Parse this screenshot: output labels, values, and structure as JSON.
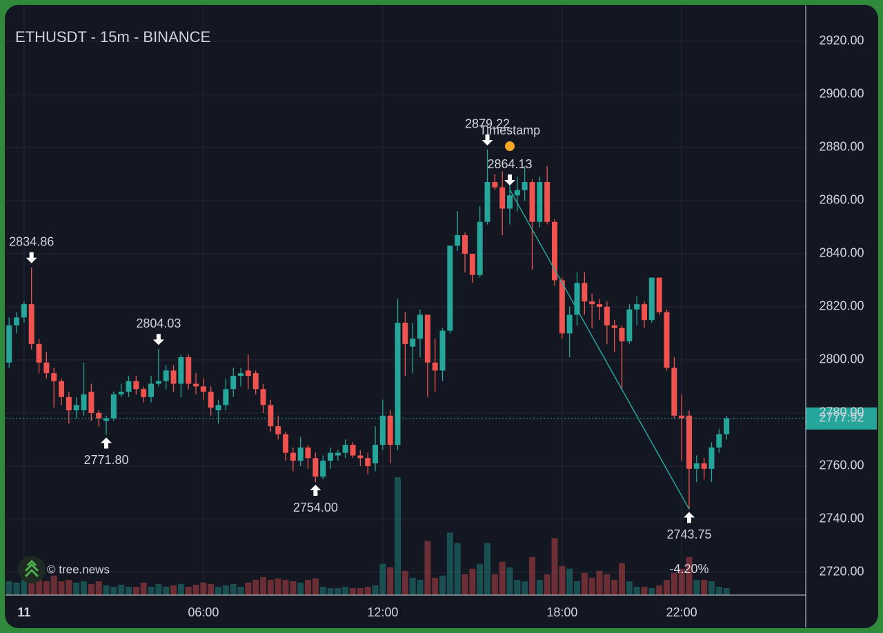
{
  "chart_data": {
    "type": "candlestick",
    "title": "ETHUSDT - 15m - BINANCE",
    "x": [
      -0.5,
      -0.25,
      0,
      0.25,
      0.5,
      0.75,
      1,
      1.25,
      1.5,
      1.75,
      2,
      2.25,
      2.5,
      2.75,
      3,
      3.25,
      3.5,
      3.75,
      4,
      4.25,
      4.5,
      4.75,
      5,
      5.25,
      5.5,
      5.75,
      6,
      6.25,
      6.5,
      6.75,
      7,
      7.25,
      7.5,
      7.75,
      8,
      8.25,
      8.5,
      8.75,
      9,
      9.25,
      9.5,
      9.75,
      10,
      10.25,
      10.5,
      10.75,
      11,
      11.25,
      11.5,
      11.75,
      12,
      12.25,
      12.5,
      12.75,
      13,
      13.25,
      13.5,
      13.75,
      14,
      14.25,
      14.5,
      14.75,
      15,
      15.25,
      15.5,
      15.75,
      16,
      16.25,
      16.5,
      16.75,
      17,
      17.25,
      17.5,
      17.75,
      18,
      18.25,
      18.5,
      18.75,
      19,
      19.25,
      19.5,
      19.75,
      20,
      20.25,
      20.5,
      20.75,
      21,
      21.25,
      21.5,
      21.75,
      22,
      22.25,
      22.5,
      22.75,
      23,
      23.25,
      23.5
    ],
    "open": [
      2799,
      2813,
      2816,
      2821,
      2806,
      2799,
      2795,
      2792,
      2786,
      2781,
      2781,
      2788,
      2780,
      2777,
      2778,
      2787,
      2788,
      2792,
      2789,
      2786,
      2791,
      2792,
      2796,
      2791,
      2801,
      2791,
      2790,
      2788,
      2781,
      2783,
      2789,
      2794,
      2796,
      2795,
      2789,
      2783,
      2775,
      2772,
      2765,
      2762,
      2767,
      2763,
      2756,
      2762,
      2764,
      2765,
      2768,
      2764,
      2763,
      2761,
      2768,
      2779,
      2768,
      2814,
      2805,
      2808,
      2817,
      2799,
      2796,
      2811,
      2843,
      2847,
      2840,
      2832,
      2852,
      2867,
      2865,
      2857,
      2862,
      2864,
      2867,
      2852,
      2867,
      2852,
      2830,
      2810,
      2817,
      2829,
      2822,
      2821,
      2820,
      2813,
      2812,
      2807,
      2819,
      2821,
      2815,
      2831,
      2818,
      2797,
      2779,
      2779,
      2759,
      2761,
      2759,
      2767,
      2772
    ],
    "high": [
      2816,
      2818,
      2822,
      2834.86,
      2808,
      2803,
      2797,
      2793,
      2788,
      2786,
      2799,
      2791,
      2781,
      2779,
      2788,
      2791,
      2794,
      2794,
      2790,
      2794,
      2804.03,
      2798,
      2798,
      2802,
      2802,
      2795,
      2793,
      2790,
      2785,
      2793,
      2797,
      2797,
      2802,
      2796,
      2791,
      2785,
      2779,
      2773,
      2767,
      2771,
      2768,
      2765,
      2764,
      2767,
      2766,
      2770,
      2769,
      2766,
      2765,
      2775,
      2785,
      2781,
      2823,
      2818,
      2814,
      2819,
      2817,
      2808,
      2812,
      2843,
      2856,
      2848,
      2840,
      2858,
      2879.22,
      2870,
      2871,
      2868,
      2869,
      2873,
      2868,
      2869,
      2873,
      2853,
      2831,
      2820,
      2833,
      2833,
      2825,
      2823,
      2822,
      2815,
      2813,
      2821,
      2824,
      2822,
      2831,
      2831,
      2819,
      2801,
      2787,
      2781,
      2764,
      2763,
      2769,
      2774,
      2779
    ],
    "low": [
      2797,
      2810,
      2814,
      2804,
      2795,
      2793,
      2782,
      2783,
      2776,
      2778,
      2779,
      2777,
      2775,
      2771.8,
      2777,
      2786,
      2786,
      2787,
      2784,
      2784,
      2790,
      2789,
      2788,
      2786,
      2789,
      2787,
      2785,
      2779,
      2776,
      2781,
      2786,
      2790,
      2789,
      2787,
      2780,
      2773,
      2770,
      2762,
      2758,
      2760,
      2759,
      2754,
      2755,
      2759,
      2762,
      2763,
      2763,
      2760,
      2757,
      2758,
      2766,
      2761,
      2766,
      2794,
      2795,
      2801,
      2786,
      2788,
      2792,
      2810,
      2841,
      2833,
      2829,
      2831,
      2851,
      2864,
      2847,
      2851,
      2856,
      2860,
      2834,
      2850,
      2851,
      2828,
      2808,
      2801,
      2813,
      2817,
      2812,
      2815,
      2806,
      2803,
      2789,
      2806,
      2813,
      2812,
      2814,
      2817,
      2796,
      2778,
      2762,
      2743.75,
      2754,
      2755,
      2754,
      2765,
      2770
    ],
    "close": [
      2813,
      2816,
      2821,
      2806,
      2799,
      2795,
      2792,
      2786,
      2781,
      2783,
      2787,
      2780,
      2778,
      2778,
      2787,
      2788,
      2792,
      2789,
      2786,
      2791,
      2792,
      2796,
      2791,
      2801,
      2791,
      2790,
      2788,
      2782,
      2783,
      2789,
      2794,
      2795,
      2794,
      2789,
      2783,
      2775,
      2772,
      2765,
      2762,
      2767,
      2763,
      2756,
      2762,
      2765,
      2765,
      2768,
      2764,
      2763,
      2760,
      2768,
      2779,
      2768,
      2814,
      2806,
      2808,
      2817,
      2799,
      2796,
      2811,
      2843,
      2847,
      2840,
      2832,
      2852,
      2867,
      2865,
      2857,
      2862,
      2864,
      2867,
      2852,
      2867,
      2852,
      2830,
      2810,
      2817,
      2829,
      2822,
      2821,
      2820,
      2813,
      2812,
      2807,
      2819,
      2821,
      2815,
      2831,
      2818,
      2797,
      2779,
      2778,
      2759,
      2761,
      2759,
      2767,
      2772,
      2778
    ],
    "volume": [
      20,
      18,
      22,
      25,
      22,
      20,
      28,
      20,
      22,
      18,
      20,
      16,
      20,
      14,
      12,
      15,
      12,
      12,
      18,
      12,
      16,
      12,
      14,
      16,
      12,
      15,
      18,
      16,
      12,
      14,
      16,
      12,
      18,
      22,
      26,
      22,
      24,
      22,
      20,
      18,
      22,
      24,
      12,
      10,
      10,
      12,
      10,
      10,
      12,
      14,
      45,
      40,
      170,
      35,
      25,
      22,
      78,
      25,
      28,
      90,
      75,
      30,
      38,
      45,
      75,
      30,
      48,
      40,
      22,
      20,
      55,
      22,
      30,
      82,
      42,
      38,
      20,
      32,
      25,
      35,
      30,
      22,
      46,
      20,
      12,
      12,
      10,
      14,
      22,
      32,
      38,
      55,
      22,
      22,
      20,
      12,
      10
    ],
    "up_color": "#26a69a",
    "down_color": "#ef5350",
    "grid": true,
    "xlim": [
      -0.62,
      26.15
    ],
    "ylim": [
      2711.4,
      2933.5
    ],
    "xticks": [
      {
        "value": 0,
        "label": "11"
      },
      {
        "value": 6,
        "label": "06:00"
      },
      {
        "value": 12,
        "label": "12:00"
      },
      {
        "value": 18,
        "label": "18:00"
      },
      {
        "value": 22,
        "label": "22:00"
      }
    ],
    "yticks": [
      {
        "value": 2720,
        "label": "2720.00"
      },
      {
        "value": 2740,
        "label": "2740.00"
      },
      {
        "value": 2760,
        "label": "2760.00"
      },
      {
        "value": 2780,
        "label": "2780.00"
      },
      {
        "value": 2800,
        "label": "2800.00"
      },
      {
        "value": 2820,
        "label": "2820.00"
      },
      {
        "value": 2840,
        "label": "2840.00"
      },
      {
        "value": 2860,
        "label": "2860.00"
      },
      {
        "value": 2880,
        "label": "2880.00"
      },
      {
        "value": 2900,
        "label": "2900.00"
      },
      {
        "value": 2920,
        "label": "2920.00"
      }
    ],
    "last_price": 2777.92,
    "annotations": [
      {
        "x": 0.25,
        "value": 2834.86,
        "label": "2834.86",
        "position": "above"
      },
      {
        "x": 2.75,
        "value": 2771.8,
        "label": "2771.80",
        "position": "below"
      },
      {
        "x": 4.5,
        "value": 2804.03,
        "label": "2804.03",
        "position": "above"
      },
      {
        "x": 9.75,
        "value": 2754,
        "label": "2754.00",
        "position": "below"
      },
      {
        "x": 15.5,
        "value": 2879.22,
        "label": "2879.22",
        "position": "above"
      },
      {
        "x": 16.25,
        "value": 2864.13,
        "label": "2864.13",
        "position": "above"
      },
      {
        "x": 22.25,
        "value": 2743.75,
        "label": "2743.75",
        "position": "below"
      }
    ],
    "trend_line": {
      "x": [
        16.25,
        22.25
      ],
      "values": [
        2864.13,
        2743.75
      ],
      "color": "#26a69a"
    },
    "timestamp": {
      "label": "Timestamp",
      "x": 16.25,
      "value": 2880.5,
      "color": "#f5a623"
    },
    "change": {
      "value": -4.2,
      "label": "-4.20%",
      "x": 22.25
    },
    "watermark": "© tree.news"
  }
}
